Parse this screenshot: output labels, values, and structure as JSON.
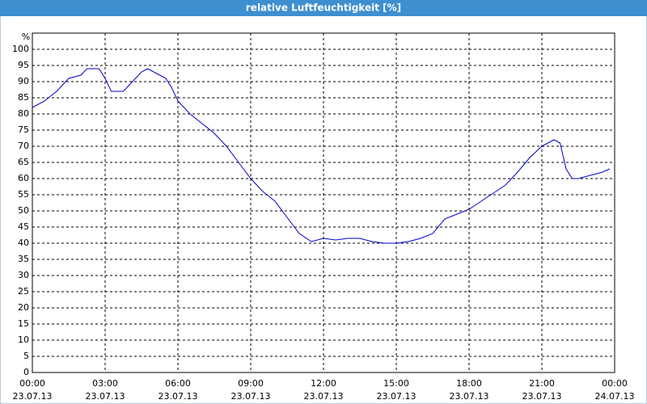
{
  "chart_data": {
    "type": "line",
    "title": "relative Luftfeuchtigkeit [%]",
    "y_label": "%",
    "x": [
      0,
      0.5,
      1,
      1.5,
      2,
      2.25,
      2.5,
      2.75,
      3,
      3.25,
      3.5,
      3.75,
      4,
      4.25,
      4.5,
      4.75,
      5,
      5.25,
      5.5,
      5.75,
      6,
      6.5,
      7,
      7.5,
      8,
      8.5,
      9,
      9.5,
      10,
      10.5,
      11,
      11.5,
      12,
      12.5,
      13,
      13.5,
      14,
      14.5,
      15,
      15.5,
      16,
      16.5,
      17,
      17.5,
      18,
      18.5,
      19,
      19.5,
      20,
      20.5,
      21,
      21.5,
      21.75,
      22,
      22.25,
      22.5,
      23,
      23.5,
      23.8
    ],
    "series": [
      {
        "name": "relative Luftfeuchtigkeit",
        "color": "#0000cc",
        "values": [
          82,
          84,
          87,
          91,
          92,
          94,
          94,
          94,
          91,
          87,
          87,
          87,
          89,
          91,
          93,
          94,
          93,
          92,
          91,
          88,
          84,
          80,
          77,
          74,
          70,
          65,
          60,
          56,
          53,
          48,
          43,
          40.5,
          41.5,
          41,
          41.5,
          41.5,
          40.5,
          40,
          40,
          40.5,
          41.5,
          43,
          47.5,
          49,
          50.5,
          53,
          55.5,
          58,
          62,
          66.5,
          70,
          72,
          71,
          63,
          60,
          60,
          61,
          62,
          63
        ]
      }
    ],
    "xlim": [
      0,
      24
    ],
    "ylim": [
      0,
      105
    ],
    "xticks": [
      {
        "value": 0,
        "label": "00:00"
      },
      {
        "value": 3,
        "label": "03:00"
      },
      {
        "value": 6,
        "label": "06:00"
      },
      {
        "value": 9,
        "label": "09:00"
      },
      {
        "value": 12,
        "label": "12:00"
      },
      {
        "value": 15,
        "label": "15:00"
      },
      {
        "value": 18,
        "label": "18:00"
      },
      {
        "value": 21,
        "label": "21:00"
      },
      {
        "value": 24,
        "label": "00:00"
      }
    ],
    "xtick_dates": [
      "23.07.13",
      "23.07.13",
      "23.07.13",
      "23.07.13",
      "23.07.13",
      "23.07.13",
      "23.07.13",
      "23.07.13",
      "24.07.13"
    ],
    "yticks": [
      0,
      5,
      10,
      15,
      20,
      25,
      30,
      35,
      40,
      45,
      50,
      55,
      60,
      65,
      70,
      75,
      80,
      85,
      90,
      95,
      100
    ],
    "grid": true
  }
}
